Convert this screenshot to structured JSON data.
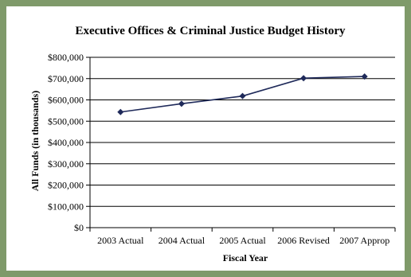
{
  "chart_data": {
    "type": "line",
    "title": "Executive Offices & Criminal Justice Budget History",
    "xlabel": "Fiscal Year",
    "ylabel": "All Funds (in thousands)",
    "categories": [
      "2003 Actual",
      "2004 Actual",
      "2005 Actual",
      "2006 Revised",
      "2007 Approp"
    ],
    "series": [
      {
        "values": [
          543000,
          582000,
          618000,
          702000,
          710000
        ]
      }
    ],
    "ylim": [
      0,
      800000
    ],
    "yticks": [
      0,
      100000,
      200000,
      300000,
      400000,
      500000,
      600000,
      700000,
      800000
    ],
    "ytick_labels": [
      "$0",
      "$100,000",
      "$200,000",
      "$300,000",
      "$400,000",
      "$500,000",
      "$600,000",
      "$700,000",
      "$800,000"
    ],
    "grid": true,
    "legend": "none",
    "colors": {
      "line": "#1f2a5a",
      "marker": "#1f2a5a",
      "frame": "#7f9a6a",
      "gridline": "#000000"
    }
  }
}
